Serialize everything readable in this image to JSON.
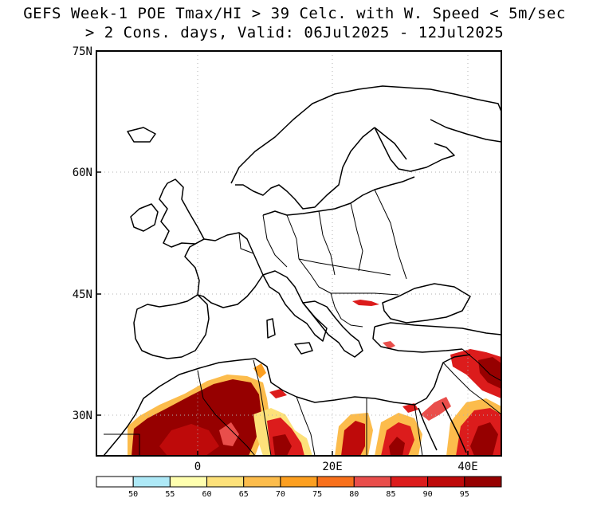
{
  "title": {
    "line1": "GEFS Week-1 POE Tmax/HI > 39 Celc. with W. Speed < 5m/sec",
    "line2": "> 2 Cons. days, Valid: 06Jul2025 - 12Jul2025"
  },
  "map": {
    "lat_labels": [
      "75N",
      "60N",
      "45N",
      "30N"
    ],
    "lon_labels": [
      "0",
      "20E",
      "40E"
    ],
    "gridlines": "dotted"
  },
  "colorbar": {
    "labels": [
      "50",
      "55",
      "60",
      "65",
      "70",
      "75",
      "80",
      "85",
      "90",
      "95"
    ],
    "colors": [
      "#ffffff",
      "#aee9f7",
      "#ffffaf",
      "#fde17a",
      "#fcbc4c",
      "#fc9f20",
      "#f8701b",
      "#e94e4b",
      "#dc1c1c",
      "#be0a0a",
      "#960000"
    ]
  },
  "colors": {
    "land_border": "#000000",
    "grid": "#b0b0b0"
  }
}
